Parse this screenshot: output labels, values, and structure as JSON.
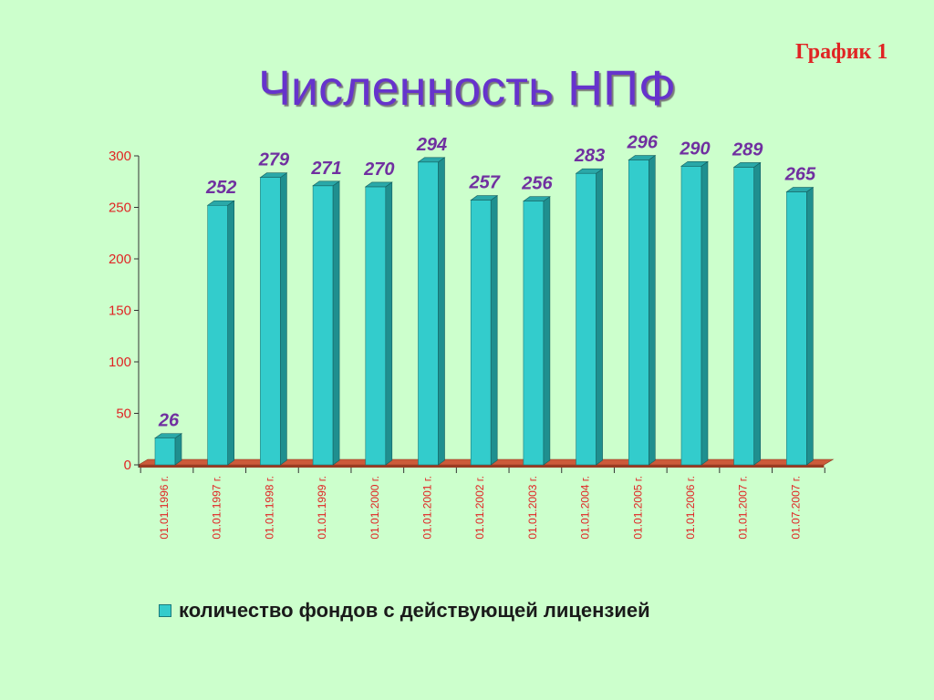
{
  "slide": {
    "label": "График 1",
    "title": "Численность НПФ"
  },
  "colors": {
    "bar_front": "#33cccc",
    "bar_side": "#1f8f8f",
    "bar_top": "#2aa8a8",
    "floor": "#cc5a3a",
    "axis_text": "#e02424",
    "data_label": "#7030a0"
  },
  "chart_data": {
    "type": "bar",
    "categories": [
      "01.01.1996 г.",
      "01.01.1997 г.",
      "01.01.1998 г.",
      "01.01.1999 г.",
      "01.01.2000 г.",
      "01.01.2001 г.",
      "01.01.2002 г.",
      "01.01.2003 г.",
      "01.01.2004 г.",
      "01.01.2005 г.",
      "01.01.2006 г.",
      "01.01.2007 г.",
      "01.07.2007 г."
    ],
    "series": [
      {
        "name": "количество фондов с действующей лицензией",
        "values": [
          26,
          252,
          279,
          271,
          270,
          294,
          257,
          256,
          283,
          296,
          290,
          289,
          265
        ]
      }
    ],
    "y_ticks": [
      "0",
      "50",
      "100",
      "150",
      "200",
      "250",
      "300"
    ],
    "ylim": [
      0,
      300
    ],
    "grid": false,
    "legend_position": "bottom",
    "style": "3d-column"
  }
}
